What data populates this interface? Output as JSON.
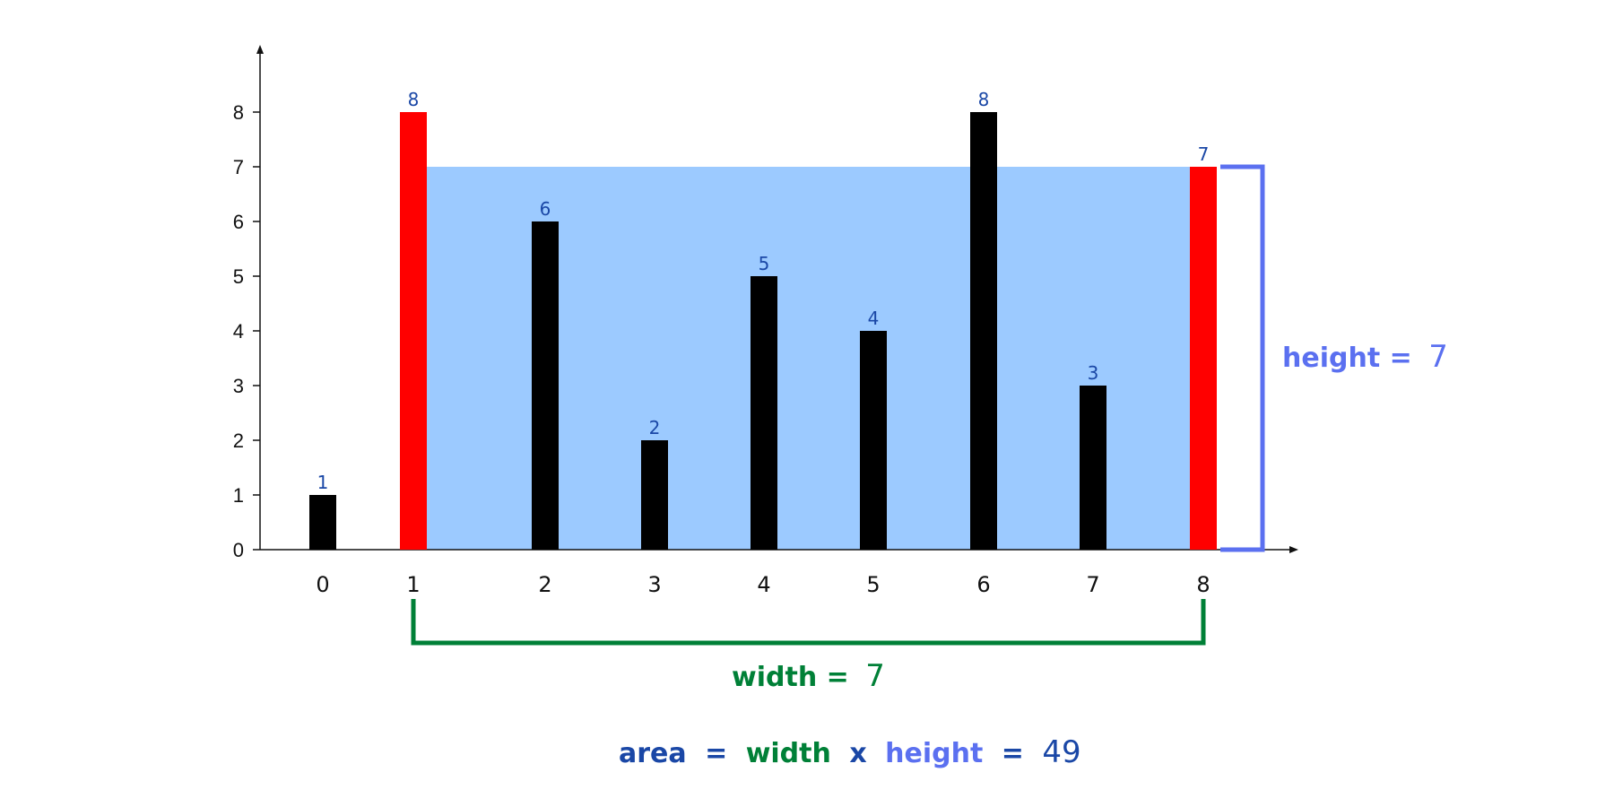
{
  "chart_data": {
    "type": "bar",
    "categories": [
      "0",
      "1",
      "2",
      "3",
      "4",
      "5",
      "6",
      "7",
      "8"
    ],
    "values": [
      1,
      8,
      6,
      2,
      5,
      4,
      8,
      3,
      7
    ],
    "ylim": [
      0,
      9
    ],
    "yticks": [
      "0",
      "1",
      "2",
      "3",
      "4",
      "5",
      "6",
      "7",
      "8"
    ],
    "grid": false,
    "highlighted_indices": [
      1,
      8
    ],
    "water_level": 7,
    "title": "",
    "xlabel": "",
    "ylabel": ""
  },
  "colors": {
    "bar": "#000000",
    "highlight_bar": "#ff0000",
    "water": "#9ccaff",
    "value_label": "#1a47a6",
    "height_bracket": "#5b70f0",
    "width_bracket": "#008037",
    "area_label": "#1a47a6",
    "axis": "#111111"
  },
  "annotations": {
    "height": {
      "label": "height =",
      "value": "7"
    },
    "width": {
      "label": "width =",
      "value": "7"
    },
    "area": {
      "word": "area",
      "eq1": "=",
      "width_word": "width",
      "times": "x",
      "height_word": "height",
      "eq2": "=",
      "value": "49"
    }
  }
}
